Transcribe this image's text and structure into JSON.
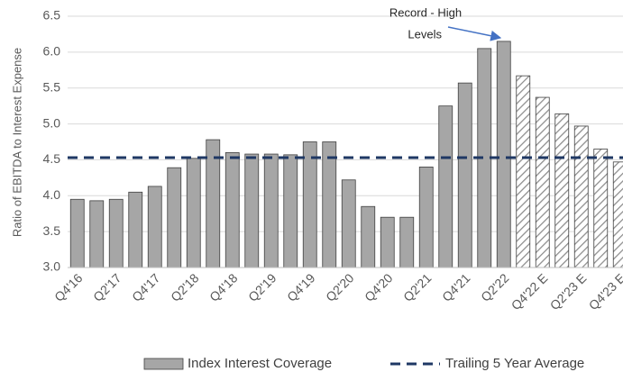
{
  "chart_data": {
    "type": "bar",
    "y_axis_label": "Ratio of EBITDA to Interest Expense",
    "categories": [
      "Q4'16",
      null,
      "Q2'17",
      null,
      "Q4'17",
      null,
      "Q2'18",
      null,
      "Q4'18",
      null,
      "Q2'19",
      null,
      "Q4'19",
      null,
      "Q2'20",
      null,
      "Q4'20",
      null,
      "Q2'21",
      null,
      "Q4'21",
      null,
      "Q2'22",
      null,
      "Q4'22 E",
      null,
      "Q2'23 E",
      null,
      "Q4'23 E"
    ],
    "series": [
      {
        "name": "Index Interest Coverage",
        "color": "#a6a6a6",
        "edge": "#404040",
        "values": [
          3.95,
          3.93,
          3.95,
          4.05,
          4.13,
          4.39,
          4.52,
          4.78,
          4.6,
          4.58,
          4.58,
          4.57,
          4.75,
          4.75,
          4.22,
          3.85,
          3.7,
          3.7,
          4.4,
          5.25,
          5.57,
          6.05,
          6.15,
          5.67,
          5.37,
          5.14,
          4.97,
          4.65,
          4.47
        ],
        "hatch_start": 23
      },
      {
        "name": "Trailing 5 Year Average",
        "type": "reference_line",
        "color": "#1f3864",
        "value": 4.53
      }
    ],
    "ylim": [
      3,
      6.5
    ],
    "yticks": [
      {
        "value": 3,
        "label": "3.0"
      },
      3.5,
      {
        "value": 4,
        "label": "4.0"
      },
      4.5,
      {
        "value": 5,
        "label": "5.0"
      },
      5.5,
      {
        "value": 6,
        "label": "6.0"
      },
      6.5
    ],
    "grid": true,
    "annotation": {
      "lines": [
        "Record - High",
        "Levels"
      ],
      "target": 22,
      "arrow_color": "#4472c4"
    },
    "legend": "bottom"
  }
}
